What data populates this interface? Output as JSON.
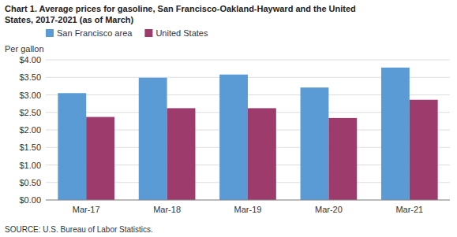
{
  "chart_data": {
    "type": "bar",
    "title": "Chart 1. Average prices for gasoline, San Francisco-Oakland-Hayward and the United",
    "subtitle": "States, 2017-2021  (as of March)",
    "y_label": "Per gallon",
    "annotations": [
      "SOURCE: U.S. Bureau of Labor Statistics."
    ],
    "categories": [
      "Mar-17",
      "Mar-18",
      "Mar-19",
      "Mar-20",
      "Mar-21"
    ],
    "series": [
      {
        "name": "San Francisco area",
        "color": "#5B9BD5",
        "values": [
          3.05,
          3.49,
          3.58,
          3.21,
          3.78
        ]
      },
      {
        "name": "United States",
        "color": "#9E3B6D",
        "values": [
          2.37,
          2.62,
          2.62,
          2.34,
          2.86
        ]
      }
    ],
    "ylim": [
      0,
      4.0
    ],
    "yticks": [
      {
        "value": 0.0,
        "label": "$0.00"
      },
      {
        "value": 0.5,
        "label": "$0.50"
      },
      {
        "value": 1.0,
        "label": "$1.00"
      },
      {
        "value": 1.5,
        "label": "$1.50"
      },
      {
        "value": 2.0,
        "label": "$2.00"
      },
      {
        "value": 2.5,
        "label": "$2.50"
      },
      {
        "value": 3.0,
        "label": "$3.00"
      },
      {
        "value": 3.5,
        "label": "$3.50"
      },
      {
        "value": 4.0,
        "label": "$4.00"
      }
    ],
    "grid": true,
    "legend": "top-left"
  }
}
